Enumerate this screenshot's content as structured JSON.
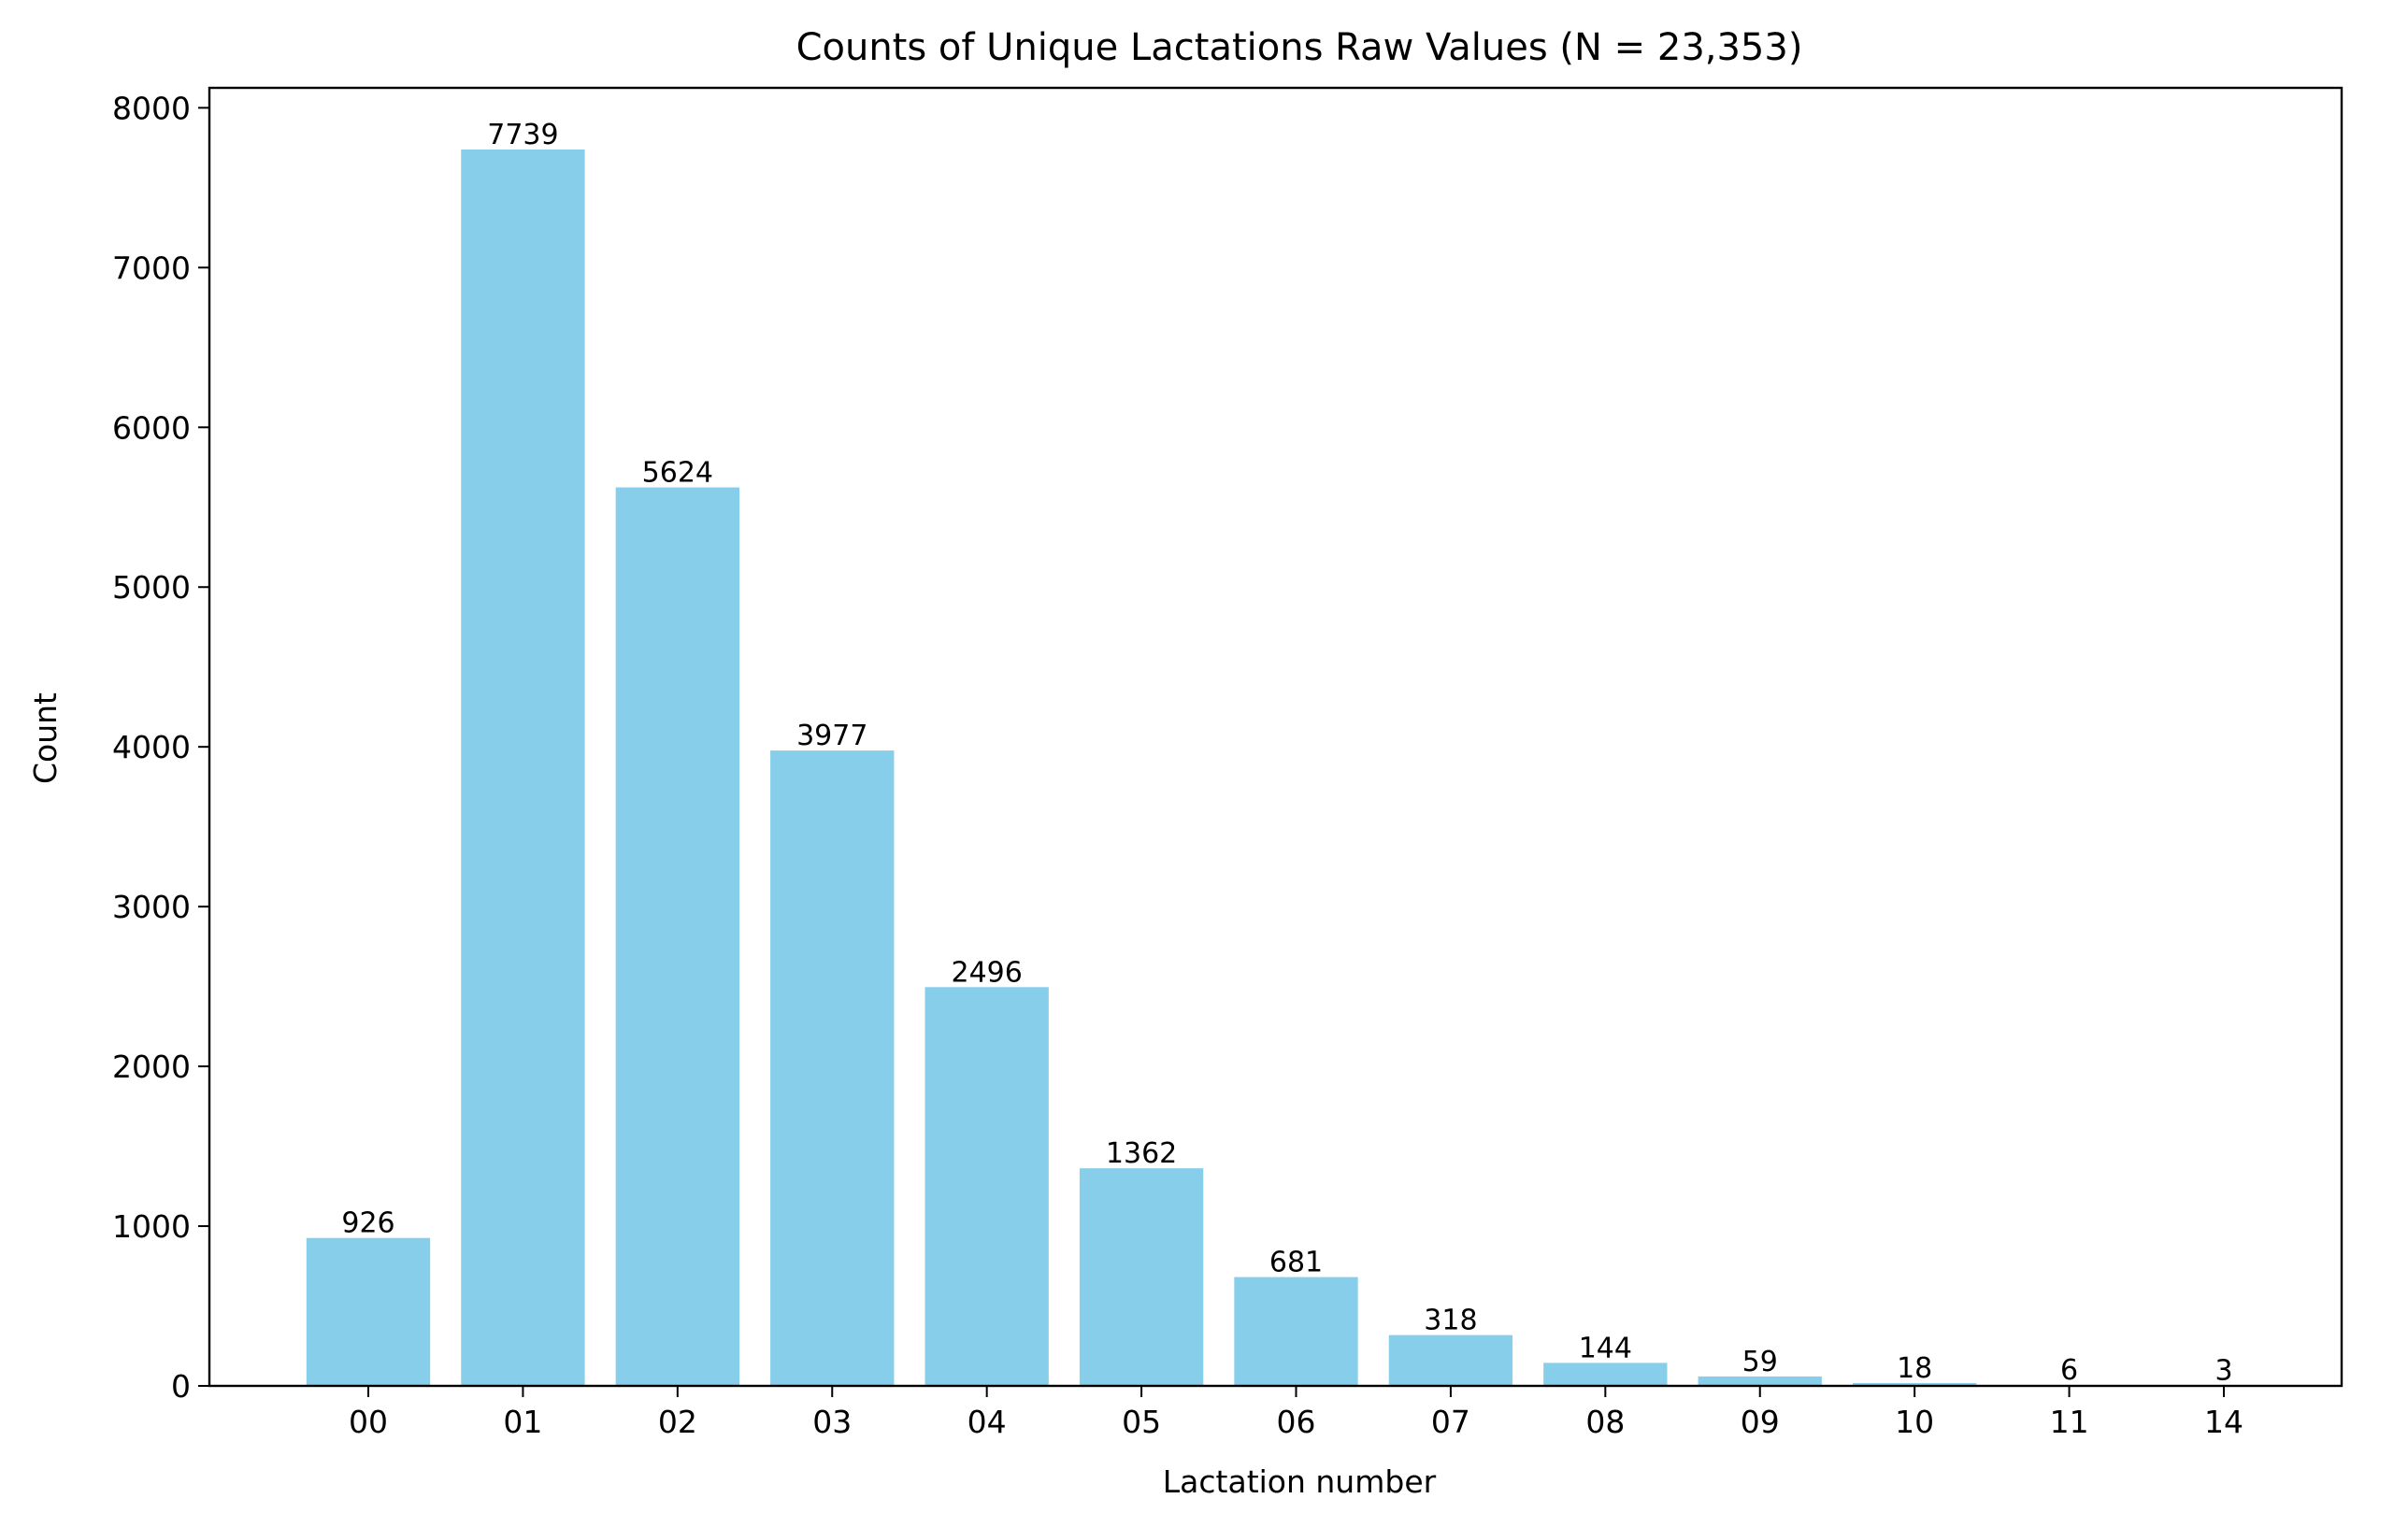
{
  "chart_data": {
    "type": "bar",
    "title": "Counts of Unique Lactations Raw Values (N = 23,353)",
    "xlabel": "Lactation number",
    "ylabel": "Count",
    "categories": [
      "00",
      "01",
      "02",
      "03",
      "04",
      "05",
      "06",
      "07",
      "08",
      "09",
      "10",
      "11",
      "14"
    ],
    "values": [
      926,
      7739,
      5624,
      3977,
      2496,
      1362,
      681,
      318,
      144,
      59,
      18,
      6,
      3
    ],
    "data_labels": [
      "926",
      "7739",
      "5624",
      "3977",
      "2496",
      "1362",
      "681",
      "318",
      "144",
      "59",
      "18",
      "6",
      "3"
    ],
    "ylim": [
      0,
      8125
    ],
    "yticks": [
      0,
      1000,
      2000,
      3000,
      4000,
      5000,
      6000,
      7000,
      8000
    ],
    "bar_color": "#87ceeb",
    "grid": false,
    "legend": "none"
  }
}
